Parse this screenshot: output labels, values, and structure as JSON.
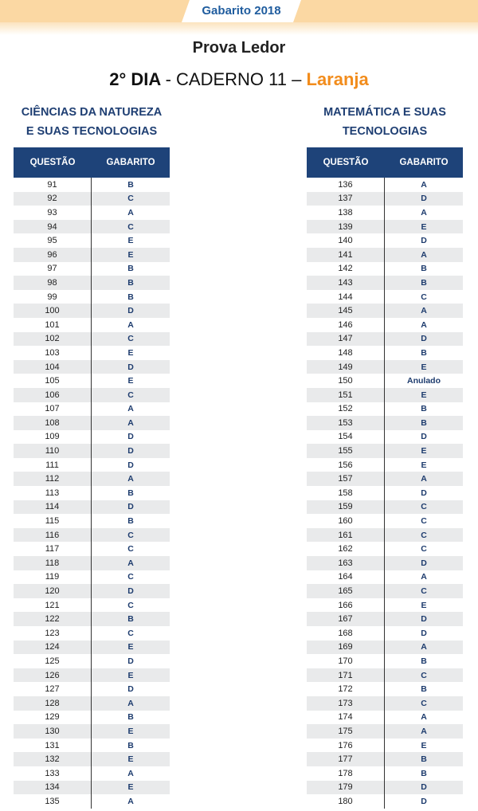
{
  "header": {
    "banner": "Gabarito 2018"
  },
  "title": "Prova Ledor",
  "subtitle": {
    "day": "2° DIA",
    "sep": "-",
    "caderno": "CADERNO 11",
    "dash": "–",
    "color": "Laranja"
  },
  "left": {
    "title_line1": "CIÊNCIAS DA NATUREZA",
    "title_line2": "E SUAS TECNOLOGIAS",
    "col_q": "QUESTÃO",
    "col_g": "GABARITO",
    "rows": [
      {
        "q": "91",
        "a": "B"
      },
      {
        "q": "92",
        "a": "C"
      },
      {
        "q": "93",
        "a": "A"
      },
      {
        "q": "94",
        "a": "C"
      },
      {
        "q": "95",
        "a": "E"
      },
      {
        "q": "96",
        "a": "E"
      },
      {
        "q": "97",
        "a": "B"
      },
      {
        "q": "98",
        "a": "B"
      },
      {
        "q": "99",
        "a": "B"
      },
      {
        "q": "100",
        "a": "D"
      },
      {
        "q": "101",
        "a": "A"
      },
      {
        "q": "102",
        "a": "C"
      },
      {
        "q": "103",
        "a": "E"
      },
      {
        "q": "104",
        "a": "D"
      },
      {
        "q": "105",
        "a": "E"
      },
      {
        "q": "106",
        "a": "C"
      },
      {
        "q": "107",
        "a": "A"
      },
      {
        "q": "108",
        "a": "A"
      },
      {
        "q": "109",
        "a": "D"
      },
      {
        "q": "110",
        "a": "D"
      },
      {
        "q": "111",
        "a": "D"
      },
      {
        "q": "112",
        "a": "A"
      },
      {
        "q": "113",
        "a": "B"
      },
      {
        "q": "114",
        "a": "D"
      },
      {
        "q": "115",
        "a": "B"
      },
      {
        "q": "116",
        "a": "C"
      },
      {
        "q": "117",
        "a": "C"
      },
      {
        "q": "118",
        "a": "A"
      },
      {
        "q": "119",
        "a": "C"
      },
      {
        "q": "120",
        "a": "D"
      },
      {
        "q": "121",
        "a": "C"
      },
      {
        "q": "122",
        "a": "B"
      },
      {
        "q": "123",
        "a": "C"
      },
      {
        "q": "124",
        "a": "E"
      },
      {
        "q": "125",
        "a": "D"
      },
      {
        "q": "126",
        "a": "E"
      },
      {
        "q": "127",
        "a": "D"
      },
      {
        "q": "128",
        "a": "A"
      },
      {
        "q": "129",
        "a": "B"
      },
      {
        "q": "130",
        "a": "E"
      },
      {
        "q": "131",
        "a": "B"
      },
      {
        "q": "132",
        "a": "E"
      },
      {
        "q": "133",
        "a": "A"
      },
      {
        "q": "134",
        "a": "E"
      },
      {
        "q": "135",
        "a": "A"
      }
    ]
  },
  "right": {
    "title_line1": "MATEMÁTICA E SUAS",
    "title_line2": "TECNOLOGIAS",
    "col_q": "QUESTÃO",
    "col_g": "GABARITO",
    "rows": [
      {
        "q": "136",
        "a": "A"
      },
      {
        "q": "137",
        "a": "D"
      },
      {
        "q": "138",
        "a": "A"
      },
      {
        "q": "139",
        "a": "E"
      },
      {
        "q": "140",
        "a": "D"
      },
      {
        "q": "141",
        "a": "A"
      },
      {
        "q": "142",
        "a": "B"
      },
      {
        "q": "143",
        "a": "B"
      },
      {
        "q": "144",
        "a": "C"
      },
      {
        "q": "145",
        "a": "A"
      },
      {
        "q": "146",
        "a": "A"
      },
      {
        "q": "147",
        "a": "D"
      },
      {
        "q": "148",
        "a": "B"
      },
      {
        "q": "149",
        "a": "E"
      },
      {
        "q": "150",
        "a": "Anulado"
      },
      {
        "q": "151",
        "a": "E"
      },
      {
        "q": "152",
        "a": "B"
      },
      {
        "q": "153",
        "a": "B"
      },
      {
        "q": "154",
        "a": "D"
      },
      {
        "q": "155",
        "a": "E"
      },
      {
        "q": "156",
        "a": "E"
      },
      {
        "q": "157",
        "a": "A"
      },
      {
        "q": "158",
        "a": "D"
      },
      {
        "q": "159",
        "a": "C"
      },
      {
        "q": "160",
        "a": "C"
      },
      {
        "q": "161",
        "a": "C"
      },
      {
        "q": "162",
        "a": "C"
      },
      {
        "q": "163",
        "a": "D"
      },
      {
        "q": "164",
        "a": "A"
      },
      {
        "q": "165",
        "a": "C"
      },
      {
        "q": "166",
        "a": "E"
      },
      {
        "q": "167",
        "a": "D"
      },
      {
        "q": "168",
        "a": "D"
      },
      {
        "q": "169",
        "a": "A"
      },
      {
        "q": "170",
        "a": "B"
      },
      {
        "q": "171",
        "a": "C"
      },
      {
        "q": "172",
        "a": "B"
      },
      {
        "q": "173",
        "a": "C"
      },
      {
        "q": "174",
        "a": "A"
      },
      {
        "q": "175",
        "a": "A"
      },
      {
        "q": "176",
        "a": "E"
      },
      {
        "q": "177",
        "a": "B"
      },
      {
        "q": "178",
        "a": "B"
      },
      {
        "q": "179",
        "a": "D"
      },
      {
        "q": "180",
        "a": "D"
      }
    ]
  }
}
